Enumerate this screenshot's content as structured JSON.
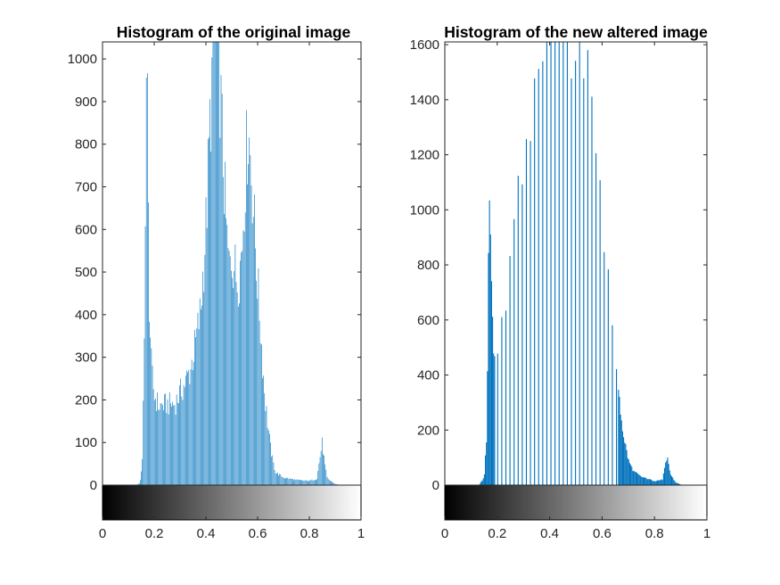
{
  "chart_data": [
    {
      "type": "bar",
      "title": "Histogram of the original image",
      "xlabel": "",
      "ylabel": "",
      "xlim": [
        0,
        1
      ],
      "ylim": [
        0,
        1040
      ],
      "xticks": [
        "0",
        "0.2",
        "0.4",
        "0.6",
        "0.8",
        "1"
      ],
      "yticks": [
        "0",
        "100",
        "200",
        "300",
        "400",
        "500",
        "600",
        "700",
        "800",
        "900",
        "1000"
      ],
      "grid": false,
      "colorbar": "grayscale 0 to 1",
      "bar_color": "#0072BD",
      "bins": 256,
      "profile_points": [
        [
          0.0,
          0
        ],
        [
          0.13,
          0
        ],
        [
          0.145,
          5
        ],
        [
          0.155,
          60
        ],
        [
          0.162,
          320
        ],
        [
          0.168,
          880
        ],
        [
          0.172,
          1040
        ],
        [
          0.176,
          700
        ],
        [
          0.182,
          420
        ],
        [
          0.19,
          270
        ],
        [
          0.2,
          210
        ],
        [
          0.22,
          185
        ],
        [
          0.25,
          190
        ],
        [
          0.28,
          190
        ],
        [
          0.3,
          215
        ],
        [
          0.32,
          240
        ],
        [
          0.34,
          270
        ],
        [
          0.36,
          330
        ],
        [
          0.38,
          410
        ],
        [
          0.39,
          500
        ],
        [
          0.4,
          600
        ],
        [
          0.41,
          750
        ],
        [
          0.42,
          900
        ],
        [
          0.43,
          1040
        ],
        [
          0.44,
          1040
        ],
        [
          0.45,
          1040
        ],
        [
          0.46,
          860
        ],
        [
          0.47,
          720
        ],
        [
          0.48,
          590
        ],
        [
          0.49,
          510
        ],
        [
          0.5,
          540
        ],
        [
          0.51,
          520
        ],
        [
          0.52,
          480
        ],
        [
          0.53,
          500
        ],
        [
          0.54,
          560
        ],
        [
          0.55,
          700
        ],
        [
          0.56,
          810
        ],
        [
          0.565,
          825
        ],
        [
          0.57,
          800
        ],
        [
          0.58,
          700
        ],
        [
          0.59,
          580
        ],
        [
          0.6,
          480
        ],
        [
          0.61,
          380
        ],
        [
          0.62,
          280
        ],
        [
          0.63,
          200
        ],
        [
          0.64,
          140
        ],
        [
          0.65,
          90
        ],
        [
          0.66,
          55
        ],
        [
          0.67,
          30
        ],
        [
          0.7,
          18
        ],
        [
          0.75,
          12
        ],
        [
          0.8,
          10
        ],
        [
          0.83,
          15
        ],
        [
          0.84,
          60
        ],
        [
          0.85,
          100
        ],
        [
          0.86,
          50
        ],
        [
          0.87,
          15
        ],
        [
          0.9,
          3
        ],
        [
          0.92,
          0
        ],
        [
          1.0,
          0
        ]
      ]
    },
    {
      "type": "bar",
      "title": "Histogram of the new altered image",
      "xlabel": "",
      "ylabel": "",
      "xlim": [
        0,
        1
      ],
      "ylim": [
        0,
        1610
      ],
      "xticks": [
        "0",
        "0.2",
        "0.4",
        "0.6",
        "0.8",
        "1"
      ],
      "yticks": [
        "0",
        "200",
        "400",
        "600",
        "800",
        "1000",
        "1200",
        "1400",
        "1600"
      ],
      "grid": false,
      "colorbar": "grayscale 0 to 1",
      "bar_color": "#0072BD",
      "bins": 256,
      "spike_spacing": 0.0156,
      "profile_points": [
        [
          0.0,
          0
        ],
        [
          0.13,
          0
        ],
        [
          0.15,
          30
        ],
        [
          0.16,
          200
        ],
        [
          0.165,
          720
        ],
        [
          0.17,
          960
        ],
        [
          0.175,
          900
        ],
        [
          0.18,
          650
        ],
        [
          0.19,
          420
        ],
        [
          0.2,
          460
        ],
        [
          0.22,
          580
        ],
        [
          0.24,
          760
        ],
        [
          0.26,
          900
        ],
        [
          0.28,
          1030
        ],
        [
          0.3,
          1150
        ],
        [
          0.32,
          1300
        ],
        [
          0.34,
          1420
        ],
        [
          0.36,
          1540
        ],
        [
          0.38,
          1610
        ],
        [
          0.4,
          1610
        ],
        [
          0.5,
          1610
        ],
        [
          0.54,
          1610
        ],
        [
          0.56,
          1450
        ],
        [
          0.58,
          1250
        ],
        [
          0.6,
          1000
        ],
        [
          0.62,
          760
        ],
        [
          0.64,
          540
        ],
        [
          0.66,
          340
        ],
        [
          0.68,
          190
        ],
        [
          0.7,
          90
        ],
        [
          0.72,
          50
        ],
        [
          0.75,
          30
        ],
        [
          0.8,
          15
        ],
        [
          0.83,
          20
        ],
        [
          0.84,
          70
        ],
        [
          0.85,
          95
        ],
        [
          0.86,
          40
        ],
        [
          0.88,
          10
        ],
        [
          0.9,
          2
        ],
        [
          0.92,
          0
        ],
        [
          1.0,
          0
        ]
      ]
    }
  ]
}
